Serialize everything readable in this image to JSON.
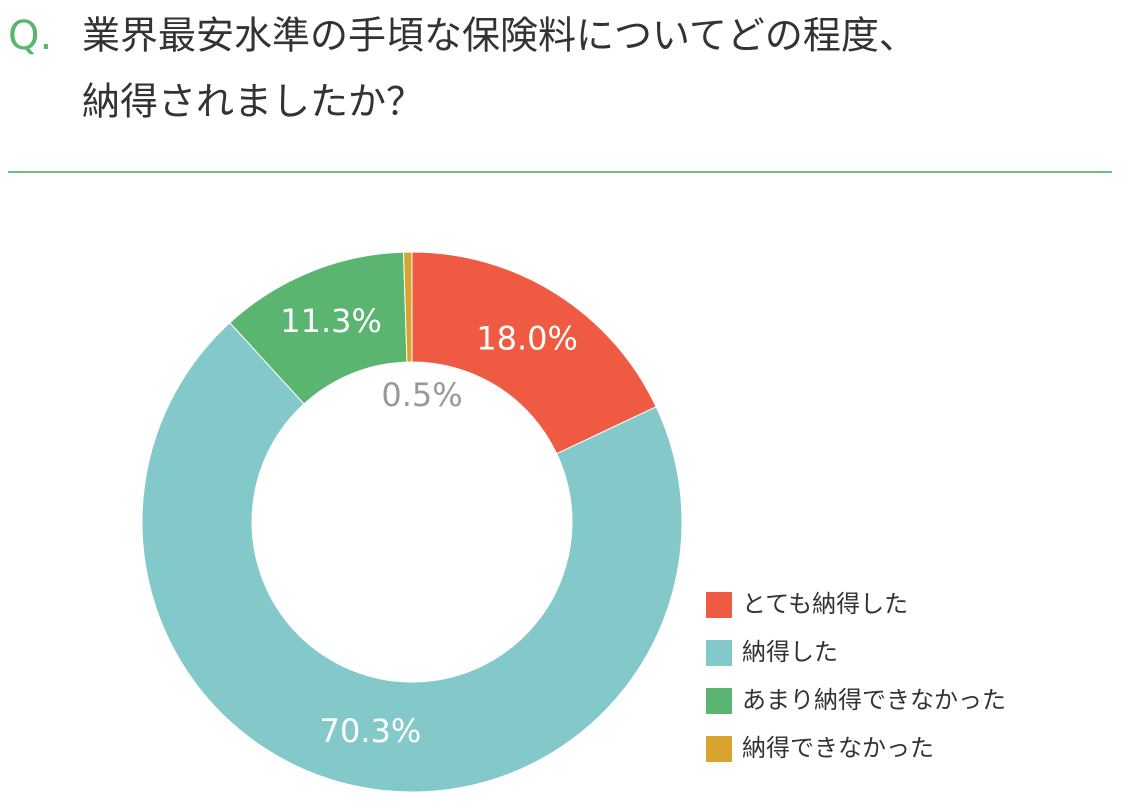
{
  "chart_data": {
    "type": "donut",
    "title_prefix": "Q.",
    "title_lines": [
      "業界最安水準の手頃な保険料についてどの程度、",
      "納得されましたか？"
    ],
    "categories": [
      "とても納得した",
      "納得した",
      "あまり納得できなかった",
      "納得できなかった"
    ],
    "values": [
      18.0,
      70.3,
      11.3,
      0.5
    ],
    "value_labels": [
      "18.0%",
      "70.3%",
      "11.3%",
      "0.5%"
    ],
    "colors": [
      "#ef5a42",
      "#83c9ca",
      "#5ab571",
      "#d9a330"
    ],
    "legend": "right"
  }
}
